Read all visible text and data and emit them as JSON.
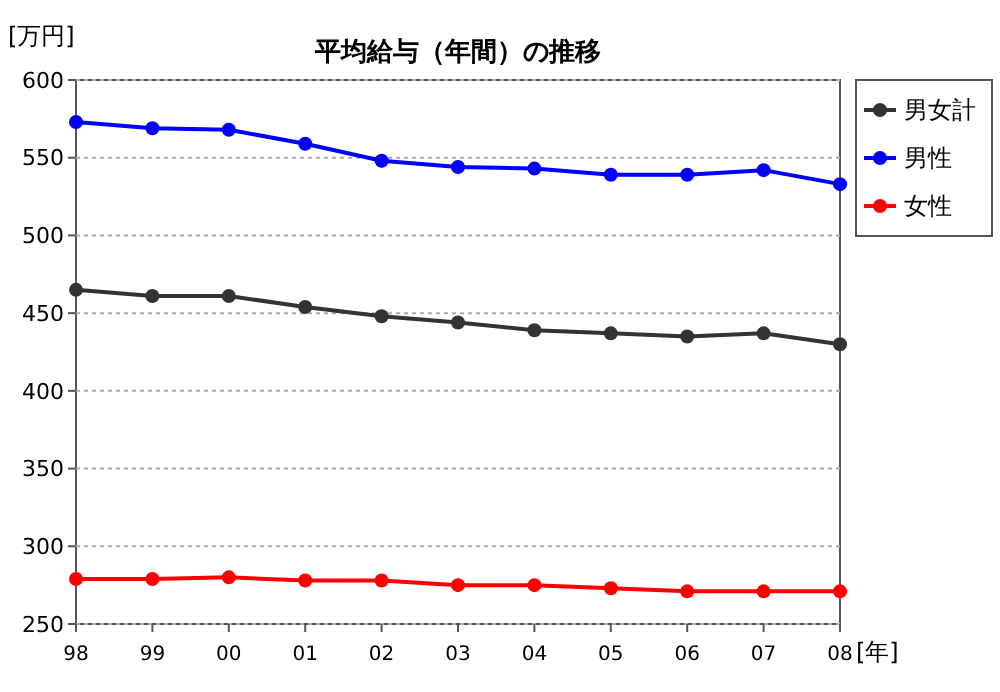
{
  "chart_data": {
    "type": "line",
    "title": "平均給与（年間）の推移",
    "xlabel": "[年]",
    "ylabel": "[万円]",
    "categories": [
      "98",
      "99",
      "00",
      "01",
      "02",
      "03",
      "04",
      "05",
      "06",
      "07",
      "08"
    ],
    "series": [
      {
        "name": "男女計",
        "color": "#333333",
        "values": [
          465,
          461,
          461,
          454,
          448,
          444,
          439,
          437,
          435,
          437,
          430
        ]
      },
      {
        "name": "男性",
        "color": "#0000ff",
        "values": [
          573,
          569,
          568,
          559,
          548,
          544,
          543,
          539,
          539,
          542,
          533
        ]
      },
      {
        "name": "女性",
        "color": "#ff0000",
        "values": [
          279,
          279,
          280,
          278,
          278,
          275,
          275,
          273,
          271,
          271,
          271
        ]
      }
    ],
    "ylim": [
      250,
      600
    ],
    "yticks": [
      250,
      300,
      350,
      400,
      450,
      500,
      550,
      600
    ],
    "grid": "y",
    "legend": "right",
    "marker": "circle",
    "line_style": "solid"
  }
}
